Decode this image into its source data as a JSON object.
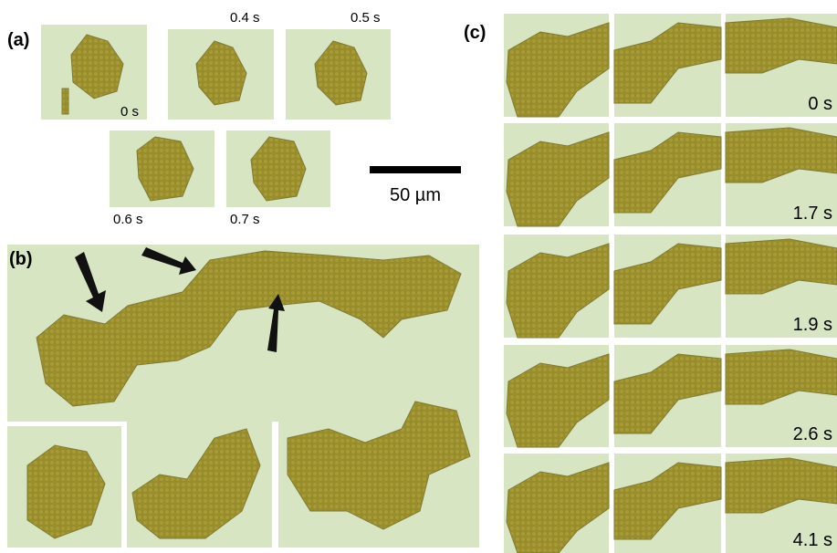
{
  "panel_a": {
    "label": "(a)",
    "frames": [
      "0 s",
      "0.4 s",
      "0.5 s",
      "0.6 s",
      "0.7 s"
    ]
  },
  "scale_bar": {
    "label": "50 µm"
  },
  "panel_b": {
    "label": "(b)"
  },
  "panel_c": {
    "label": "(c)",
    "times": [
      "0 s",
      "1.7 s",
      "1.9 s",
      "2.6 s",
      "4.1 s"
    ]
  }
}
